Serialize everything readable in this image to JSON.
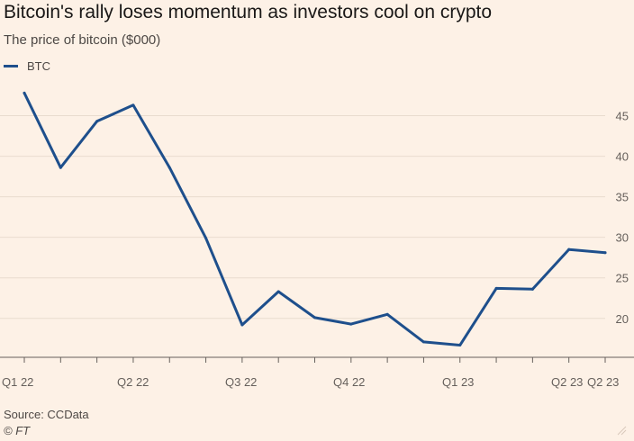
{
  "colors": {
    "background": "#fdf1e6",
    "series": "#1e4f8c",
    "grid": "#e9dccf",
    "axis": "#66605c"
  },
  "chart_data": {
    "type": "line",
    "title": "Bitcoin's rally loses momentum as investors cool on crypto",
    "subtitle": "The price of bitcoin ($000)",
    "xlabel": "",
    "ylabel": "",
    "ylim": [
      15.2,
      49.5
    ],
    "yticks": [
      20,
      25,
      30,
      35,
      40,
      45
    ],
    "x_ticks": [
      "Q1 22",
      "Q2 22",
      "Q3 22",
      "Q4 22",
      "Q1 23",
      "Q2 23",
      "Q2 23"
    ],
    "series": [
      {
        "name": "BTC",
        "values": [
          47.8,
          38.6,
          44.3,
          46.3,
          38.6,
          29.9,
          19.2,
          23.3,
          20.1,
          19.3,
          20.5,
          17.1,
          16.7,
          23.7,
          23.6,
          28.5,
          28.1
        ]
      }
    ]
  },
  "footer": {
    "source": "Source: CCData",
    "copyright": "© FT"
  }
}
